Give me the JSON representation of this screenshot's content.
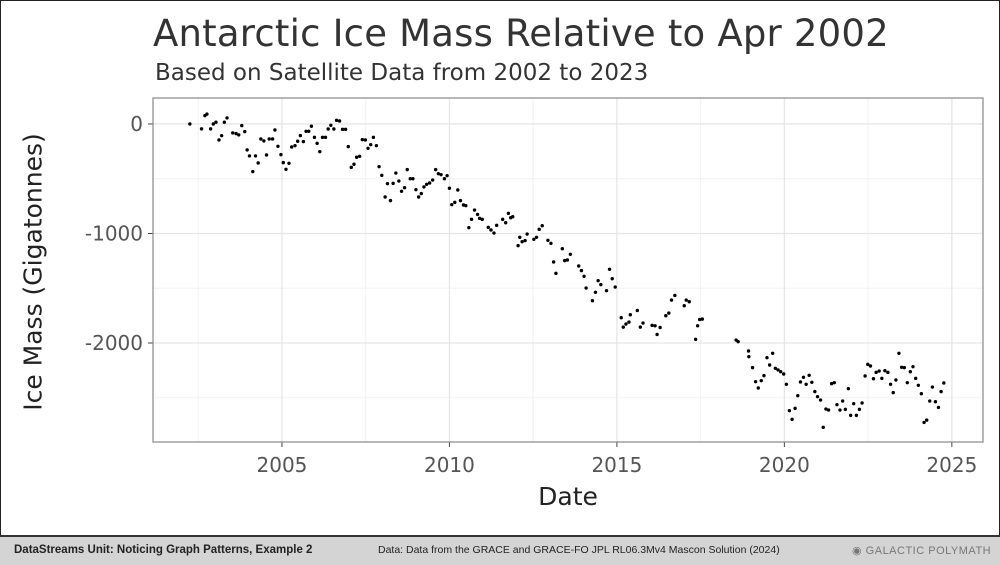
{
  "footer": {
    "unit": "DataStreams Unit: Noticing Graph Patterns, Example 2",
    "source": "Data: Data from the GRACE and GRACE-FO JPL RL06.3Mv4 Mascon Solution (2024)",
    "logo": "GALACTIC POLYMATH"
  },
  "chart_data": {
    "type": "scatter",
    "title": "Antarctic Ice Mass Relative to Apr 2002",
    "subtitle": "Based on Satellite Data from 2002 to 2023",
    "xlabel": "Date",
    "ylabel": "Ice Mass (Gigatonnes)",
    "xlim": [
      2001.15,
      2025.93
    ],
    "ylim": [
      -2904,
      237
    ],
    "xticks": [
      2005,
      2010,
      2015,
      2020,
      2025
    ],
    "xtick_labels": [
      "2005",
      "2010",
      "2015",
      "2020",
      "2025"
    ],
    "yticks": [
      0,
      -1000,
      -2000
    ],
    "ytick_labels": [
      "0",
      "-1000",
      "-2000"
    ],
    "grid": true,
    "point_color": "#000000",
    "x": [
      2002.25,
      2002.6,
      2002.7,
      2002.76,
      2002.87,
      2002.95,
      2003.03,
      2003.12,
      2003.2,
      2003.28,
      2003.36,
      2003.53,
      2003.63,
      2003.71,
      2003.8,
      2003.89,
      2003.96,
      2004.03,
      2004.13,
      2004.21,
      2004.29,
      2004.37,
      2004.46,
      2004.54,
      2004.62,
      2004.72,
      2004.79,
      2004.88,
      2004.97,
      2005.04,
      2005.12,
      2005.21,
      2005.29,
      2005.39,
      2005.47,
      2005.55,
      2005.64,
      2005.72,
      2005.8,
      2005.88,
      2005.97,
      2006.05,
      2006.13,
      2006.21,
      2006.3,
      2006.38,
      2006.46,
      2006.55,
      2006.63,
      2006.72,
      2006.81,
      2006.9,
      2006.98,
      2007.07,
      2007.15,
      2007.23,
      2007.32,
      2007.4,
      2007.49,
      2007.57,
      2007.65,
      2007.73,
      2007.82,
      2007.9,
      2007.98,
      2008.08,
      2008.15,
      2008.24,
      2008.32,
      2008.4,
      2008.49,
      2008.57,
      2008.66,
      2008.74,
      2008.83,
      2008.91,
      2009.0,
      2009.08,
      2009.16,
      2009.24,
      2009.32,
      2009.41,
      2009.5,
      2009.59,
      2009.67,
      2009.75,
      2009.85,
      2009.93,
      2010.0,
      2010.07,
      2010.16,
      2010.25,
      2010.33,
      2010.42,
      2010.49,
      2010.58,
      2010.66,
      2010.75,
      2010.84,
      2010.9,
      2010.98,
      2011.16,
      2011.24,
      2011.33,
      2011.41,
      2011.59,
      2011.68,
      2011.76,
      2011.83,
      2011.89,
      2012.05,
      2012.1,
      2012.17,
      2012.26,
      2012.32,
      2012.52,
      2012.6,
      2012.68,
      2012.77,
      2012.94,
      2013.03,
      2013.11,
      2013.18,
      2013.37,
      2013.44,
      2013.52,
      2013.61,
      2013.86,
      2013.94,
      2014.02,
      2014.08,
      2014.27,
      2014.36,
      2014.44,
      2014.52,
      2014.69,
      2014.78,
      2014.86,
      2014.95,
      2015.13,
      2015.19,
      2015.27,
      2015.36,
      2015.4,
      2015.61,
      2015.7,
      2015.78,
      2016.05,
      2016.14,
      2016.2,
      2016.29,
      2016.46,
      2016.55,
      2016.63,
      2016.73,
      2017.01,
      2017.07,
      2017.16,
      2017.35,
      2017.41,
      2017.47,
      2017.55,
      2018.56,
      2018.62,
      2018.93,
      2018.94,
      2019.05,
      2019.14,
      2019.22,
      2019.31,
      2019.39,
      2019.48,
      2019.56,
      2019.65,
      2019.73,
      2019.81,
      2019.89,
      2019.98,
      2020.06,
      2020.15,
      2020.23,
      2020.32,
      2020.4,
      2020.48,
      2020.57,
      2020.65,
      2020.74,
      2020.82,
      2020.91,
      2020.99,
      2021.08,
      2021.16,
      2021.24,
      2021.32,
      2021.41,
      2021.49,
      2021.57,
      2021.66,
      2021.74,
      2021.82,
      2021.91,
      2021.98,
      2022.07,
      2022.15,
      2022.24,
      2022.32,
      2022.41,
      2022.49,
      2022.57,
      2022.66,
      2022.74,
      2022.83,
      2022.91,
      2023.0,
      2023.09,
      2023.17,
      2023.25,
      2023.33,
      2023.42,
      2023.5,
      2023.58,
      2023.67,
      2023.76,
      2023.84,
      2023.92,
      2024.0,
      2024.09,
      2024.17,
      2024.25,
      2024.34,
      2024.42,
      2024.51,
      2024.6,
      2024.68,
      2024.76
    ],
    "y": [
      0,
      -45,
      76,
      90,
      -45,
      0,
      16,
      -146,
      -107,
      16,
      55,
      -82,
      -88,
      -100,
      -15,
      -70,
      -237,
      -292,
      -435,
      -292,
      -356,
      -137,
      -155,
      -283,
      -137,
      -137,
      -55,
      -204,
      -280,
      -353,
      -414,
      -359,
      -210,
      -198,
      -158,
      -106,
      -161,
      -67,
      -67,
      -21,
      -122,
      -177,
      -253,
      -122,
      -122,
      -46,
      -12,
      -46,
      33,
      27,
      -49,
      -49,
      -207,
      -396,
      -368,
      -304,
      -295,
      -143,
      -146,
      -222,
      -189,
      -122,
      -198,
      -390,
      -469,
      -667,
      -545,
      -700,
      -542,
      -448,
      -521,
      -615,
      -582,
      -417,
      -500,
      -500,
      -600,
      -667,
      -636,
      -575,
      -551,
      -539,
      -512,
      -417,
      -454,
      -463,
      -500,
      -472,
      -587,
      -737,
      -716,
      -603,
      -700,
      -740,
      -746,
      -947,
      -871,
      -786,
      -826,
      -862,
      -871,
      -944,
      -968,
      -996,
      -926,
      -871,
      -902,
      -816,
      -856,
      -847,
      -1111,
      -1035,
      -1075,
      -1065,
      -1005,
      -1053,
      -1035,
      -962,
      -929,
      -1062,
      -1090,
      -1260,
      -1364,
      -1139,
      -1248,
      -1242,
      -1190,
      -1297,
      -1339,
      -1391,
      -1498,
      -1614,
      -1537,
      -1431,
      -1467,
      -1522,
      -1327,
      -1413,
      -1489,
      -1769,
      -1855,
      -1827,
      -1809,
      -1742,
      -1703,
      -1855,
      -1818,
      -1839,
      -1843,
      -1922,
      -1858,
      -1751,
      -1727,
      -1608,
      -1566,
      -1660,
      -1608,
      -1623,
      -1967,
      -1843,
      -1785,
      -1782,
      -1973,
      -1988,
      -2073,
      -2125,
      -2225,
      -2353,
      -2411,
      -2344,
      -2298,
      -2134,
      -2201,
      -2094,
      -2231,
      -2246,
      -2262,
      -2283,
      -2377,
      -2618,
      -2697,
      -2597,
      -2481,
      -2356,
      -2313,
      -2377,
      -2295,
      -2359,
      -2444,
      -2490,
      -2521,
      -2770,
      -2603,
      -2612,
      -2371,
      -2362,
      -2563,
      -2612,
      -2530,
      -2606,
      -2417,
      -2661,
      -2554,
      -2661,
      -2606,
      -2548,
      -2301,
      -2195,
      -2210,
      -2326,
      -2268,
      -2256,
      -2323,
      -2253,
      -2268,
      -2377,
      -2453,
      -2338,
      -2094,
      -2222,
      -2225,
      -2362,
      -2262,
      -2216,
      -2323,
      -2386,
      -2463,
      -2725,
      -2704,
      -2530,
      -2402,
      -2536,
      -2588,
      -2444,
      -2365
    ]
  }
}
